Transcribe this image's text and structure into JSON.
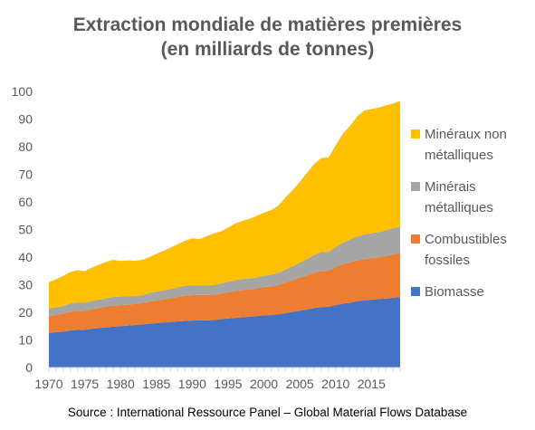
{
  "chart_data": {
    "type": "area",
    "stacked": true,
    "title": "Extraction mondiale de matières premières",
    "subtitle": "(en milliards de tonnes)",
    "xlabel": "",
    "ylabel": "",
    "xlim": [
      1970,
      2019
    ],
    "ylim": [
      0,
      100
    ],
    "x_ticks": [
      "1970",
      "1975",
      "1980",
      "1985",
      "1990",
      "1995",
      "2000",
      "2005",
      "2010",
      "2015"
    ],
    "y_ticks": [
      "0",
      "10",
      "20",
      "30",
      "40",
      "50",
      "60",
      "70",
      "80",
      "90",
      "100"
    ],
    "grid": false,
    "legend_position": "right",
    "x": [
      1970,
      1971,
      1972,
      1973,
      1974,
      1975,
      1976,
      1977,
      1978,
      1979,
      1980,
      1981,
      1982,
      1983,
      1984,
      1985,
      1986,
      1987,
      1988,
      1989,
      1990,
      1991,
      1992,
      1993,
      1994,
      1995,
      1996,
      1997,
      1998,
      1999,
      2000,
      2001,
      2002,
      2003,
      2004,
      2005,
      2006,
      2007,
      2008,
      2009,
      2010,
      2011,
      2012,
      2013,
      2014,
      2015,
      2016,
      2017,
      2018,
      2019
    ],
    "series": [
      {
        "name": "Biomasse",
        "color": "#4472C4",
        "values": [
          12.5,
          12.8,
          13.0,
          13.4,
          13.6,
          13.7,
          14.0,
          14.3,
          14.6,
          14.8,
          14.9,
          15.2,
          15.4,
          15.6,
          15.9,
          16.1,
          16.3,
          16.5,
          16.7,
          16.9,
          17.0,
          17.1,
          17.1,
          17.2,
          17.5,
          17.8,
          18.0,
          18.2,
          18.4,
          18.6,
          18.9,
          19.0,
          19.3,
          19.7,
          20.1,
          20.6,
          21.0,
          21.6,
          21.9,
          22.0,
          22.6,
          23.1,
          23.5,
          24.0,
          24.3,
          24.6,
          24.8,
          25.0,
          25.3,
          25.5
        ]
      },
      {
        "name": "Combustibles fossiles",
        "color": "#ED7D31",
        "values": [
          6.2,
          6.3,
          6.5,
          6.8,
          6.9,
          6.9,
          7.1,
          7.3,
          7.5,
          7.7,
          7.7,
          7.6,
          7.6,
          7.7,
          8.0,
          8.2,
          8.4,
          8.6,
          8.9,
          9.1,
          9.2,
          9.2,
          9.2,
          9.2,
          9.3,
          9.5,
          9.7,
          9.9,
          9.9,
          10.0,
          10.3,
          10.4,
          10.6,
          11.1,
          11.6,
          12.0,
          12.4,
          12.8,
          13.1,
          13.1,
          13.8,
          14.3,
          14.6,
          14.8,
          15.0,
          15.0,
          15.1,
          15.4,
          15.7,
          16.0
        ]
      },
      {
        "name": "Minerais métalliques",
        "color": "#A5A5A5",
        "values": [
          2.6,
          2.7,
          2.8,
          3.0,
          3.1,
          2.9,
          3.0,
          3.0,
          3.0,
          3.1,
          3.1,
          3.0,
          2.9,
          2.9,
          3.1,
          3.2,
          3.2,
          3.3,
          3.4,
          3.6,
          3.6,
          3.5,
          3.5,
          3.5,
          3.6,
          3.8,
          3.9,
          4.0,
          4.0,
          4.0,
          4.1,
          4.2,
          4.4,
          4.7,
          5.0,
          5.4,
          5.9,
          6.4,
          6.8,
          6.7,
          7.3,
          7.8,
          8.2,
          8.6,
          8.9,
          9.1,
          9.2,
          9.3,
          9.4,
          9.5
        ]
      },
      {
        "name": "Minéraux non métalliques",
        "color": "#FFC000",
        "values": [
          9.6,
          10.2,
          10.9,
          11.4,
          11.7,
          11.4,
          12.1,
          12.7,
          13.2,
          13.4,
          12.9,
          13.0,
          12.8,
          12.8,
          13.0,
          13.7,
          14.4,
          15.1,
          15.7,
          16.4,
          17.0,
          16.7,
          17.7,
          18.7,
          18.9,
          19.6,
          20.6,
          21.0,
          21.6,
          22.4,
          22.8,
          23.4,
          24.3,
          26.1,
          27.6,
          29.2,
          31.2,
          32.9,
          34.1,
          34.3,
          36.7,
          39.5,
          41.2,
          43.5,
          44.9,
          44.9,
          45.1,
          45.2,
          45.2,
          45.5
        ]
      }
    ],
    "legend": [
      {
        "line1": "Minéraux non",
        "line2": "métalliques",
        "color": "#FFC000"
      },
      {
        "line1": "Minérais",
        "line2": "métalliques",
        "color": "#A5A5A5"
      },
      {
        "line1": "Combustibles",
        "line2": "fossiles",
        "color": "#ED7D31"
      },
      {
        "line1": "Biomasse",
        "line2": "",
        "color": "#4472C4"
      }
    ]
  },
  "source": "Source : International Ressource Panel – Global Material Flows Database"
}
